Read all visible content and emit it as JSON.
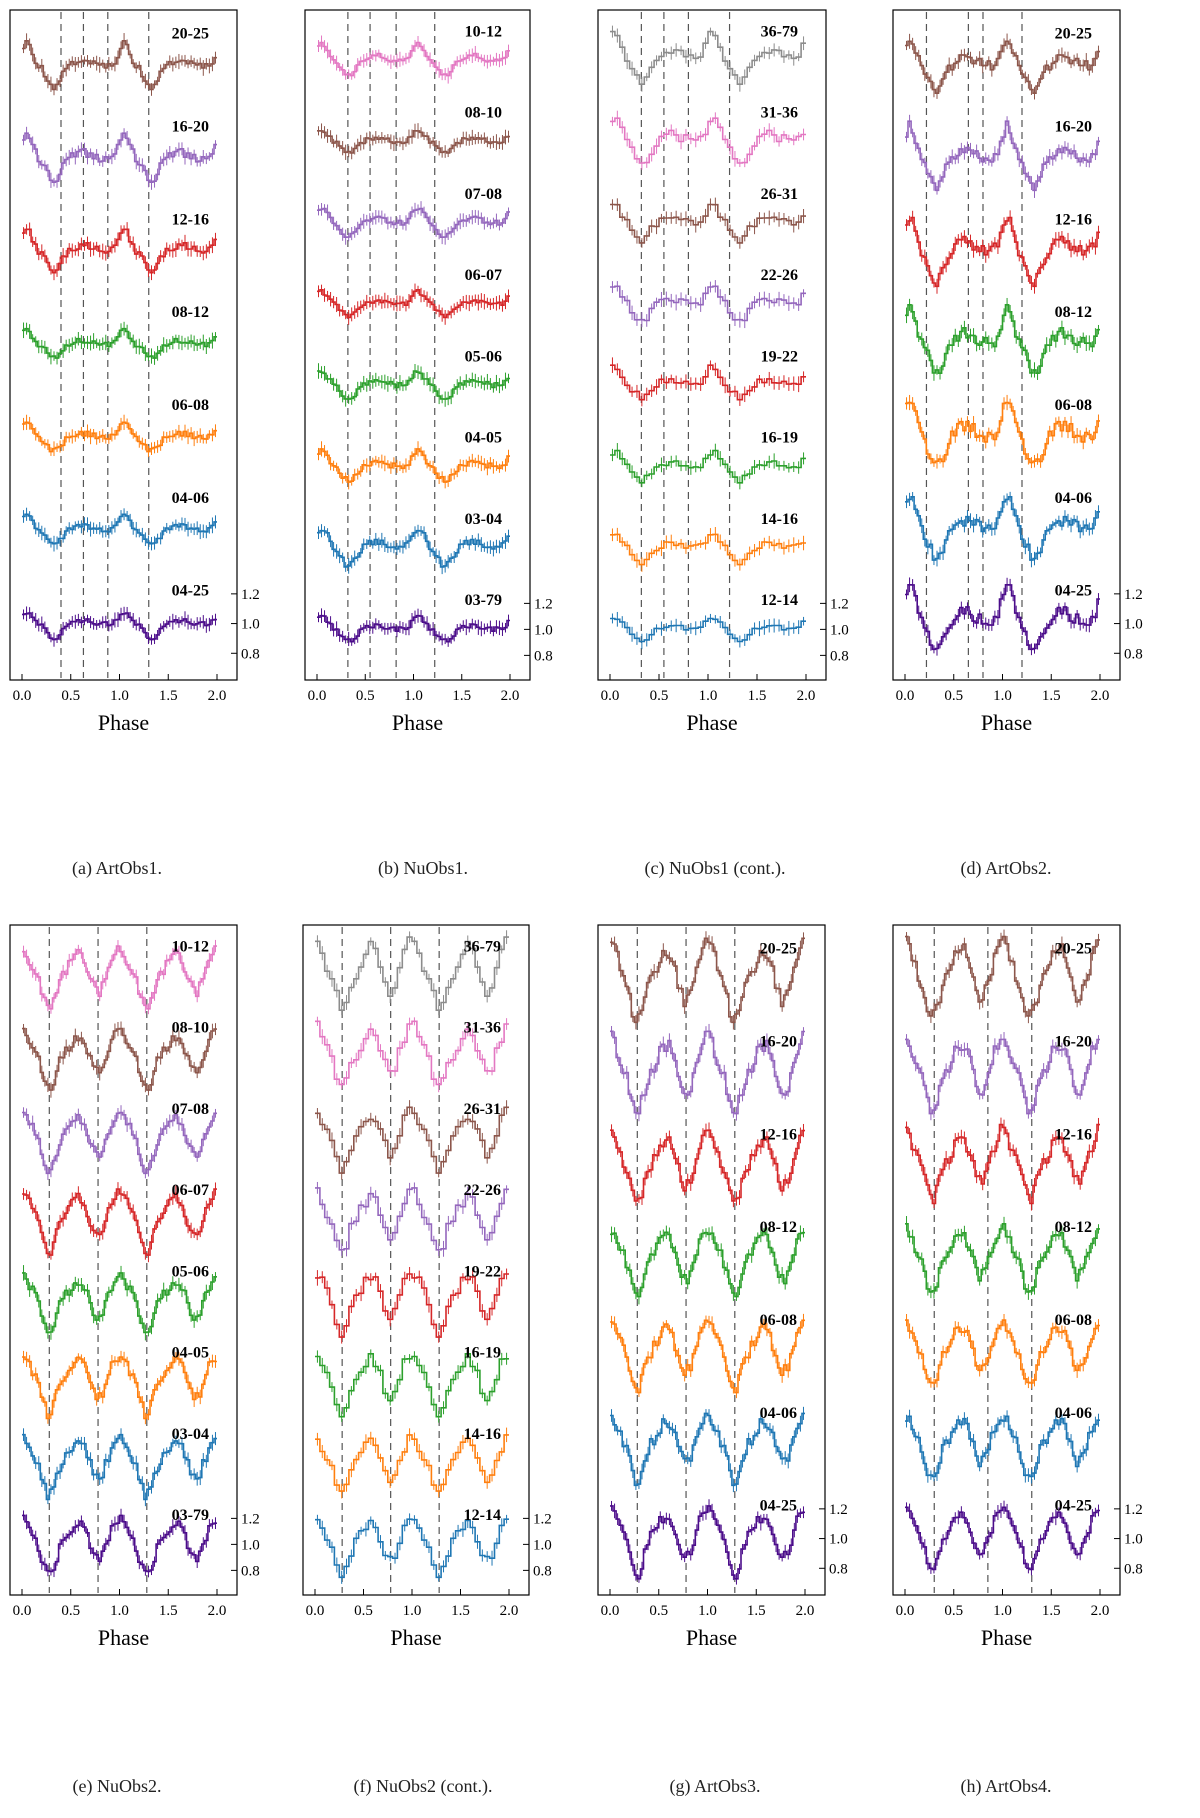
{
  "figure": {
    "xlabel": "Phase",
    "xticks": [
      "0.0",
      "0.5",
      "1.0",
      "1.5",
      "2.0"
    ],
    "yticks": [
      "1.2",
      "1.0",
      "0.8"
    ]
  },
  "colors": {
    "03-79": "#4b0c8a",
    "04-25": "#4b0c8a",
    "03-04": "#1f77b4",
    "04-06": "#1f77b4",
    "12-14": "#1f77b4",
    "04-05": "#ff7f0e",
    "06-08": "#ff7f0e",
    "14-16": "#ff7f0e",
    "05-06": "#2ca02c",
    "08-12": "#2ca02c",
    "16-19": "#2ca02c",
    "06-07": "#d62728",
    "12-16": "#d62728",
    "19-22": "#d62728",
    "07-08": "#9467bd",
    "16-20": "#9467bd",
    "22-26": "#9467bd",
    "08-10": "#8c564b",
    "20-25": "#8c564b",
    "26-31": "#8c564b",
    "10-12": "#e377c2",
    "31-36": "#e377c2",
    "36-79": "#8c8c8c"
  },
  "chart_data": [
    {
      "type": "line",
      "caption": "(a) ArtObs1.",
      "xlabel": "Phase",
      "xlim": [
        0,
        2
      ],
      "ylim": [
        0.8,
        1.2
      ],
      "dashed_phases": [
        0.4,
        0.63,
        0.88,
        1.3
      ],
      "series": [
        {
          "name": "04-25",
          "dip": 0.88,
          "peak": 1.08
        },
        {
          "name": "04-06",
          "dip": 0.9,
          "peak": 1.1
        },
        {
          "name": "06-08",
          "dip": 0.9,
          "peak": 1.1
        },
        {
          "name": "08-12",
          "dip": 0.9,
          "peak": 1.1
        },
        {
          "name": "12-16",
          "dip": 0.85,
          "peak": 1.15
        },
        {
          "name": "16-20",
          "dip": 0.85,
          "peak": 1.15
        },
        {
          "name": "20-25",
          "dip": 0.85,
          "peak": 1.15
        }
      ]
    },
    {
      "type": "line",
      "caption": "(b) NuObs1.",
      "xlabel": "Phase",
      "xlim": [
        0,
        2
      ],
      "ylim": [
        0.8,
        1.2
      ],
      "dashed_phases": [
        0.32,
        0.55,
        0.82,
        1.22
      ],
      "series": [
        {
          "name": "03-79",
          "dip": 0.9,
          "peak": 1.1
        },
        {
          "name": "03-04",
          "dip": 0.85,
          "peak": 1.15
        },
        {
          "name": "04-05",
          "dip": 0.88,
          "peak": 1.12
        },
        {
          "name": "05-06",
          "dip": 0.88,
          "peak": 1.12
        },
        {
          "name": "06-07",
          "dip": 0.9,
          "peak": 1.1
        },
        {
          "name": "07-08",
          "dip": 0.88,
          "peak": 1.12
        },
        {
          "name": "08-10",
          "dip": 0.9,
          "peak": 1.1
        },
        {
          "name": "10-12",
          "dip": 0.88,
          "peak": 1.12
        }
      ]
    },
    {
      "type": "line",
      "caption": "(c) NuObs1 (cont.).",
      "xlabel": "Phase",
      "xlim": [
        0,
        2
      ],
      "ylim": [
        0.8,
        1.2
      ],
      "dashed_phases": [
        0.32,
        0.55,
        0.8,
        1.22
      ],
      "series": [
        {
          "name": "12-14",
          "dip": 0.9,
          "peak": 1.1
        },
        {
          "name": "14-16",
          "dip": 0.88,
          "peak": 1.12
        },
        {
          "name": "16-19",
          "dip": 0.88,
          "peak": 1.12
        },
        {
          "name": "19-22",
          "dip": 0.9,
          "peak": 1.15
        },
        {
          "name": "22-26",
          "dip": 0.85,
          "peak": 1.15
        },
        {
          "name": "26-31",
          "dip": 0.85,
          "peak": 1.15
        },
        {
          "name": "31-36",
          "dip": 0.8,
          "peak": 1.2
        },
        {
          "name": "36-79",
          "dip": 0.8,
          "peak": 1.25
        }
      ]
    },
    {
      "type": "line",
      "caption": "(d) ArtObs2.",
      "xlabel": "Phase",
      "xlim": [
        0,
        2
      ],
      "ylim": [
        0.8,
        1.2
      ],
      "dashed_phases": [
        0.22,
        0.65,
        0.8,
        1.2
      ],
      "series": [
        {
          "name": "04-25",
          "dip": 0.78,
          "peak": 1.25
        },
        {
          "name": "04-06",
          "dip": 0.78,
          "peak": 1.25
        },
        {
          "name": "06-08",
          "dip": 0.78,
          "peak": 1.25
        },
        {
          "name": "08-12",
          "dip": 0.78,
          "peak": 1.25
        },
        {
          "name": "12-16",
          "dip": 0.78,
          "peak": 1.25
        },
        {
          "name": "16-20",
          "dip": 0.8,
          "peak": 1.22
        },
        {
          "name": "20-25",
          "dip": 0.82,
          "peak": 1.2
        }
      ]
    },
    {
      "type": "line",
      "caption": "(e) NuObs2.",
      "xlabel": "Phase",
      "xlim": [
        0,
        2
      ],
      "ylim": [
        0.8,
        1.2
      ],
      "dashed_phases": [
        0.28,
        0.78,
        1.28
      ],
      "series": [
        {
          "name": "03-79",
          "dip": 0.75,
          "peak": 1.2
        },
        {
          "name": "03-04",
          "dip": 0.75,
          "peak": 1.2
        },
        {
          "name": "04-05",
          "dip": 0.75,
          "peak": 1.2
        },
        {
          "name": "05-06",
          "dip": 0.75,
          "peak": 1.2
        },
        {
          "name": "06-07",
          "dip": 0.75,
          "peak": 1.2
        },
        {
          "name": "07-08",
          "dip": 0.75,
          "peak": 1.2
        },
        {
          "name": "08-10",
          "dip": 0.75,
          "peak": 1.2
        },
        {
          "name": "10-12",
          "dip": 0.75,
          "peak": 1.2
        }
      ]
    },
    {
      "type": "line",
      "caption": "(f) NuObs2 (cont.).",
      "xlabel": "Phase",
      "xlim": [
        0,
        2
      ],
      "ylim": [
        0.8,
        1.2
      ],
      "dashed_phases": [
        0.28,
        0.78,
        1.28
      ],
      "series": [
        {
          "name": "12-14",
          "dip": 0.75,
          "peak": 1.2
        },
        {
          "name": "14-16",
          "dip": 0.75,
          "peak": 1.2
        },
        {
          "name": "16-19",
          "dip": 0.75,
          "peak": 1.22
        },
        {
          "name": "19-22",
          "dip": 0.75,
          "peak": 1.22
        },
        {
          "name": "22-26",
          "dip": 0.75,
          "peak": 1.22
        },
        {
          "name": "26-31",
          "dip": 0.75,
          "peak": 1.22
        },
        {
          "name": "31-36",
          "dip": 0.75,
          "peak": 1.25
        },
        {
          "name": "36-79",
          "dip": 0.75,
          "peak": 1.28
        }
      ]
    },
    {
      "type": "line",
      "caption": "(g) ArtObs3.",
      "xlabel": "Phase",
      "xlim": [
        0,
        2
      ],
      "ylim": [
        0.8,
        1.2
      ],
      "dashed_phases": [
        0.28,
        0.78,
        1.28
      ],
      "series": [
        {
          "name": "04-25",
          "dip": 0.75,
          "peak": 1.2
        },
        {
          "name": "04-06",
          "dip": 0.75,
          "peak": 1.2
        },
        {
          "name": "06-08",
          "dip": 0.75,
          "peak": 1.2
        },
        {
          "name": "08-12",
          "dip": 0.75,
          "peak": 1.2
        },
        {
          "name": "12-16",
          "dip": 0.75,
          "peak": 1.22
        },
        {
          "name": "16-20",
          "dip": 0.75,
          "peak": 1.25
        },
        {
          "name": "20-25",
          "dip": 0.72,
          "peak": 1.28
        }
      ]
    },
    {
      "type": "line",
      "caption": "(h) ArtObs4.",
      "xlabel": "Phase",
      "xlim": [
        0,
        2
      ],
      "ylim": [
        0.8,
        1.2
      ],
      "dashed_phases": [
        0.3,
        0.85,
        1.3
      ],
      "series": [
        {
          "name": "04-25",
          "dip": 0.78,
          "peak": 1.2
        },
        {
          "name": "04-06",
          "dip": 0.78,
          "peak": 1.2
        },
        {
          "name": "06-08",
          "dip": 0.78,
          "peak": 1.22
        },
        {
          "name": "08-12",
          "dip": 0.78,
          "peak": 1.22
        },
        {
          "name": "12-16",
          "dip": 0.78,
          "peak": 1.25
        },
        {
          "name": "16-20",
          "dip": 0.75,
          "peak": 1.25
        },
        {
          "name": "20-25",
          "dip": 0.75,
          "peak": 1.28
        }
      ]
    }
  ]
}
